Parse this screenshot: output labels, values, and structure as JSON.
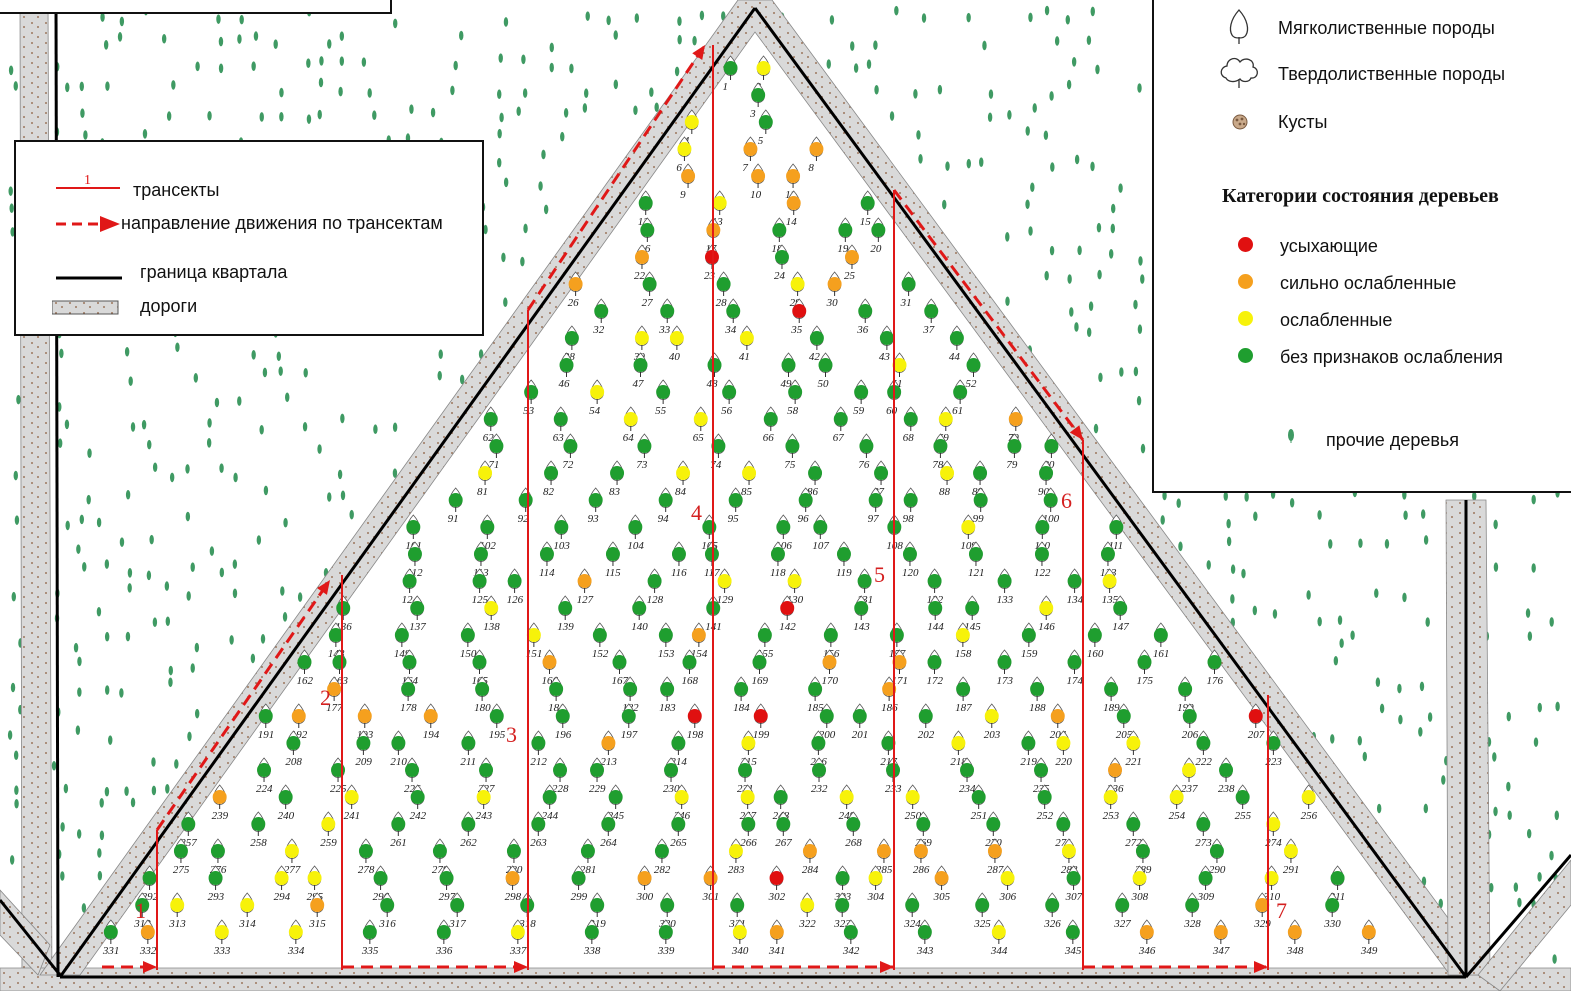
{
  "legend_main": {
    "items": [
      {
        "symbol": "transect-line",
        "symbol_label": "1",
        "label": "трансекты"
      },
      {
        "symbol": "dashed-arrow",
        "label": "направление движения по трансектам"
      },
      {
        "symbol": "black-line",
        "label": "граница квартала"
      },
      {
        "symbol": "road",
        "label": "дороги"
      }
    ]
  },
  "legend_species": {
    "items": [
      {
        "icon": "soft-leaved-tree-icon",
        "label": "Мягколиственные породы"
      },
      {
        "icon": "hard-leaved-tree-icon",
        "label": "Твердолиственные породы"
      },
      {
        "icon": "bush-icon",
        "label": "Кусты"
      }
    ]
  },
  "legend_condition": {
    "title": "Категории  состояния деревьев",
    "items": [
      {
        "key": "red",
        "color": "#e01010",
        "label": "усыхающие"
      },
      {
        "key": "orange",
        "color": "#f5a01e",
        "label": "сильно ослабленные"
      },
      {
        "key": "yellow",
        "color": "#f7f20a",
        "label": "ослабленные"
      },
      {
        "key": "green",
        "color": "#1f9e2f",
        "label": "без признаков ослабления"
      }
    ]
  },
  "legend_other": {
    "icon": "other-tree-icon",
    "label": "прочие деревья"
  },
  "colors": {
    "road": "#d8d8d8",
    "boundary": "#000000",
    "transect": "#e01818",
    "other_tree": "#3f9a63"
  },
  "transects": [
    "1",
    "2",
    "3",
    "4",
    "5",
    "6",
    "7"
  ],
  "trees": [
    {
      "id": "1",
      "c": "green"
    },
    {
      "id": "2",
      "c": "yellow"
    },
    {
      "id": "3",
      "c": "green"
    },
    {
      "id": "4",
      "c": "yellow"
    },
    {
      "id": "5",
      "c": "green"
    },
    {
      "id": "6",
      "c": "yellow"
    },
    {
      "id": "7",
      "c": "orange"
    },
    {
      "id": "8",
      "c": "orange"
    },
    {
      "id": "9",
      "c": "orange"
    },
    {
      "id": "10",
      "c": "orange"
    },
    {
      "id": "11",
      "c": "orange"
    },
    {
      "id": "12",
      "c": "green"
    },
    {
      "id": "13",
      "c": "yellow"
    },
    {
      "id": "14",
      "c": "orange"
    },
    {
      "id": "15",
      "c": "green"
    },
    {
      "id": "16",
      "c": "green"
    },
    {
      "id": "17",
      "c": "orange"
    },
    {
      "id": "18",
      "c": "green"
    },
    {
      "id": "19",
      "c": "green"
    },
    {
      "id": "20",
      "c": "green"
    },
    {
      "id": "22",
      "c": "orange"
    },
    {
      "id": "23",
      "c": "red"
    },
    {
      "id": "24",
      "c": "green"
    },
    {
      "id": "25",
      "c": "orange"
    },
    {
      "id": "26",
      "c": "orange"
    },
    {
      "id": "27",
      "c": "green"
    },
    {
      "id": "28",
      "c": "green"
    },
    {
      "id": "29",
      "c": "yellow"
    },
    {
      "id": "30",
      "c": "orange"
    },
    {
      "id": "31",
      "c": "green"
    },
    {
      "id": "32",
      "c": "green"
    },
    {
      "id": "33",
      "c": "green"
    },
    {
      "id": "34",
      "c": "green"
    },
    {
      "id": "35",
      "c": "red"
    },
    {
      "id": "36",
      "c": "green"
    },
    {
      "id": "37",
      "c": "green"
    },
    {
      "id": "38",
      "c": "green"
    },
    {
      "id": "39",
      "c": "yellow"
    },
    {
      "id": "40",
      "c": "yellow"
    },
    {
      "id": "41",
      "c": "yellow"
    },
    {
      "id": "42",
      "c": "green"
    },
    {
      "id": "43",
      "c": "green"
    },
    {
      "id": "44",
      "c": "green"
    },
    {
      "id": "46",
      "c": "green"
    },
    {
      "id": "47",
      "c": "green"
    },
    {
      "id": "48",
      "c": "green"
    },
    {
      "id": "49",
      "c": "green"
    },
    {
      "id": "50",
      "c": "green"
    },
    {
      "id": "51",
      "c": "yellow"
    },
    {
      "id": "52",
      "c": "green"
    },
    {
      "id": "53",
      "c": "green"
    },
    {
      "id": "54",
      "c": "yellow"
    },
    {
      "id": "55",
      "c": "green"
    },
    {
      "id": "56",
      "c": "green"
    },
    {
      "id": "58",
      "c": "green"
    },
    {
      "id": "59",
      "c": "green"
    },
    {
      "id": "60",
      "c": "green"
    },
    {
      "id": "61",
      "c": "green"
    },
    {
      "id": "62",
      "c": "green"
    },
    {
      "id": "63",
      "c": "green"
    },
    {
      "id": "64",
      "c": "yellow"
    },
    {
      "id": "65",
      "c": "yellow"
    },
    {
      "id": "66",
      "c": "green"
    },
    {
      "id": "67",
      "c": "green"
    },
    {
      "id": "68",
      "c": "green"
    },
    {
      "id": "69",
      "c": "yellow"
    },
    {
      "id": "70",
      "c": "orange"
    },
    {
      "id": "71",
      "c": "green"
    },
    {
      "id": "72",
      "c": "green"
    },
    {
      "id": "73",
      "c": "green"
    },
    {
      "id": "74",
      "c": "green"
    },
    {
      "id": "75",
      "c": "green"
    },
    {
      "id": "76",
      "c": "green"
    },
    {
      "id": "78",
      "c": "green"
    },
    {
      "id": "79",
      "c": "green"
    },
    {
      "id": "80",
      "c": "green"
    },
    {
      "id": "81",
      "c": "yellow"
    },
    {
      "id": "82",
      "c": "green"
    },
    {
      "id": "83",
      "c": "green"
    },
    {
      "id": "84",
      "c": "yellow"
    },
    {
      "id": "85",
      "c": "yellow"
    },
    {
      "id": "86",
      "c": "green"
    },
    {
      "id": "87",
      "c": "green"
    },
    {
      "id": "88",
      "c": "yellow"
    },
    {
      "id": "89",
      "c": "green"
    },
    {
      "id": "90",
      "c": "green"
    },
    {
      "id": "91",
      "c": "green"
    },
    {
      "id": "92",
      "c": "green"
    },
    {
      "id": "93",
      "c": "green"
    },
    {
      "id": "94",
      "c": "green"
    },
    {
      "id": "95",
      "c": "green"
    },
    {
      "id": "96",
      "c": "green"
    },
    {
      "id": "97",
      "c": "green"
    },
    {
      "id": "98",
      "c": "green"
    },
    {
      "id": "99",
      "c": "green"
    },
    {
      "id": "100",
      "c": "green"
    },
    {
      "id": "101",
      "c": "green"
    },
    {
      "id": "102",
      "c": "green"
    },
    {
      "id": "103",
      "c": "green"
    },
    {
      "id": "104",
      "c": "green"
    },
    {
      "id": "105",
      "c": "green"
    },
    {
      "id": "106",
      "c": "green"
    },
    {
      "id": "107",
      "c": "green"
    },
    {
      "id": "108",
      "c": "green"
    },
    {
      "id": "109",
      "c": "yellow"
    },
    {
      "id": "110",
      "c": "green"
    },
    {
      "id": "111",
      "c": "green"
    },
    {
      "id": "112",
      "c": "green"
    },
    {
      "id": "113",
      "c": "green"
    },
    {
      "id": "114",
      "c": "green"
    },
    {
      "id": "115",
      "c": "green"
    },
    {
      "id": "116",
      "c": "green"
    },
    {
      "id": "117",
      "c": "green"
    },
    {
      "id": "118",
      "c": "green"
    },
    {
      "id": "119",
      "c": "green"
    },
    {
      "id": "120",
      "c": "green"
    },
    {
      "id": "121",
      "c": "green"
    },
    {
      "id": "122",
      "c": "green"
    },
    {
      "id": "123",
      "c": "green"
    },
    {
      "id": "124",
      "c": "green"
    },
    {
      "id": "125",
      "c": "green"
    },
    {
      "id": "126",
      "c": "green"
    },
    {
      "id": "127",
      "c": "orange"
    },
    {
      "id": "128",
      "c": "green"
    },
    {
      "id": "129",
      "c": "yellow"
    },
    {
      "id": "130",
      "c": "yellow"
    },
    {
      "id": "131",
      "c": "green"
    },
    {
      "id": "132",
      "c": "green"
    },
    {
      "id": "133",
      "c": "green"
    },
    {
      "id": "134",
      "c": "green"
    },
    {
      "id": "135",
      "c": "yellow"
    },
    {
      "id": "136",
      "c": "green"
    },
    {
      "id": "137",
      "c": "green"
    },
    {
      "id": "138",
      "c": "yellow"
    },
    {
      "id": "139",
      "c": "green"
    },
    {
      "id": "140",
      "c": "green"
    },
    {
      "id": "141",
      "c": "green"
    },
    {
      "id": "142",
      "c": "red"
    },
    {
      "id": "143",
      "c": "green"
    },
    {
      "id": "144",
      "c": "green"
    },
    {
      "id": "145",
      "c": "green"
    },
    {
      "id": "146",
      "c": "yellow"
    },
    {
      "id": "147",
      "c": "green"
    },
    {
      "id": "148",
      "c": "green"
    },
    {
      "id": "149",
      "c": "green"
    },
    {
      "id": "150",
      "c": "green"
    },
    {
      "id": "151",
      "c": "yellow"
    },
    {
      "id": "152",
      "c": "green"
    },
    {
      "id": "153",
      "c": "green"
    },
    {
      "id": "154",
      "c": "orange"
    },
    {
      "id": "155",
      "c": "green"
    },
    {
      "id": "156",
      "c": "green"
    },
    {
      "id": "157",
      "c": "green"
    },
    {
      "id": "158",
      "c": "yellow"
    },
    {
      "id": "159",
      "c": "green"
    },
    {
      "id": "160",
      "c": "green"
    },
    {
      "id": "161",
      "c": "green"
    },
    {
      "id": "162",
      "c": "green"
    },
    {
      "id": "163",
      "c": "green"
    },
    {
      "id": "164",
      "c": "green"
    },
    {
      "id": "165",
      "c": "green"
    },
    {
      "id": "166",
      "c": "orange"
    },
    {
      "id": "167",
      "c": "green"
    },
    {
      "id": "168",
      "c": "green"
    },
    {
      "id": "169",
      "c": "green"
    },
    {
      "id": "170",
      "c": "orange"
    },
    {
      "id": "171",
      "c": "orange"
    },
    {
      "id": "172",
      "c": "green"
    },
    {
      "id": "173",
      "c": "green"
    },
    {
      "id": "174",
      "c": "green"
    },
    {
      "id": "175",
      "c": "green"
    },
    {
      "id": "176",
      "c": "green"
    },
    {
      "id": "177",
      "c": "orange"
    },
    {
      "id": "178",
      "c": "green"
    },
    {
      "id": "180",
      "c": "green"
    },
    {
      "id": "181",
      "c": "green"
    },
    {
      "id": "182",
      "c": "green"
    },
    {
      "id": "183",
      "c": "green"
    },
    {
      "id": "184",
      "c": "green"
    },
    {
      "id": "185",
      "c": "green"
    },
    {
      "id": "186",
      "c": "orange"
    },
    {
      "id": "187",
      "c": "green"
    },
    {
      "id": "188",
      "c": "green"
    },
    {
      "id": "189",
      "c": "green"
    },
    {
      "id": "190",
      "c": "green"
    },
    {
      "id": "191",
      "c": "green"
    },
    {
      "id": "192",
      "c": "orange"
    },
    {
      "id": "193",
      "c": "orange"
    },
    {
      "id": "194",
      "c": "orange"
    },
    {
      "id": "195",
      "c": "green"
    },
    {
      "id": "196",
      "c": "green"
    },
    {
      "id": "197",
      "c": "green"
    },
    {
      "id": "198",
      "c": "red"
    },
    {
      "id": "199",
      "c": "red"
    },
    {
      "id": "200",
      "c": "green"
    },
    {
      "id": "201",
      "c": "green"
    },
    {
      "id": "202",
      "c": "green"
    },
    {
      "id": "203",
      "c": "yellow"
    },
    {
      "id": "204",
      "c": "orange"
    },
    {
      "id": "205",
      "c": "green"
    },
    {
      "id": "206",
      "c": "green"
    },
    {
      "id": "207",
      "c": "red"
    },
    {
      "id": "208",
      "c": "green"
    },
    {
      "id": "209",
      "c": "green"
    },
    {
      "id": "210",
      "c": "green"
    },
    {
      "id": "211",
      "c": "green"
    },
    {
      "id": "212",
      "c": "green"
    },
    {
      "id": "213",
      "c": "orange"
    },
    {
      "id": "214",
      "c": "green"
    },
    {
      "id": "215",
      "c": "yellow"
    },
    {
      "id": "216",
      "c": "green"
    },
    {
      "id": "217",
      "c": "green"
    },
    {
      "id": "218",
      "c": "yellow"
    },
    {
      "id": "219",
      "c": "green"
    },
    {
      "id": "220",
      "c": "yellow"
    },
    {
      "id": "221",
      "c": "yellow"
    },
    {
      "id": "222",
      "c": "green"
    },
    {
      "id": "223",
      "c": "green"
    },
    {
      "id": "224",
      "c": "green"
    },
    {
      "id": "225",
      "c": "green"
    },
    {
      "id": "226",
      "c": "green"
    },
    {
      "id": "227",
      "c": "green"
    },
    {
      "id": "228",
      "c": "green"
    },
    {
      "id": "229",
      "c": "green"
    },
    {
      "id": "230",
      "c": "green"
    },
    {
      "id": "231",
      "c": "green"
    },
    {
      "id": "232",
      "c": "green"
    },
    {
      "id": "233",
      "c": "green"
    },
    {
      "id": "234",
      "c": "green"
    },
    {
      "id": "235",
      "c": "green"
    },
    {
      "id": "236",
      "c": "orange"
    },
    {
      "id": "237",
      "c": "yellow"
    },
    {
      "id": "238",
      "c": "green"
    },
    {
      "id": "239",
      "c": "orange"
    },
    {
      "id": "240",
      "c": "green"
    },
    {
      "id": "241",
      "c": "yellow"
    },
    {
      "id": "242",
      "c": "green"
    },
    {
      "id": "243",
      "c": "yellow"
    },
    {
      "id": "244",
      "c": "green"
    },
    {
      "id": "245",
      "c": "green"
    },
    {
      "id": "246",
      "c": "yellow"
    },
    {
      "id": "247",
      "c": "yellow"
    },
    {
      "id": "248",
      "c": "green"
    },
    {
      "id": "249",
      "c": "yellow"
    },
    {
      "id": "250",
      "c": "yellow"
    },
    {
      "id": "251",
      "c": "green"
    },
    {
      "id": "252",
      "c": "green"
    },
    {
      "id": "253",
      "c": "yellow"
    },
    {
      "id": "254",
      "c": "yellow"
    },
    {
      "id": "255",
      "c": "green"
    },
    {
      "id": "256",
      "c": "yellow"
    },
    {
      "id": "257",
      "c": "green"
    },
    {
      "id": "258",
      "c": "green"
    },
    {
      "id": "259",
      "c": "yellow"
    },
    {
      "id": "261",
      "c": "green"
    },
    {
      "id": "262",
      "c": "green"
    },
    {
      "id": "263",
      "c": "green"
    },
    {
      "id": "264",
      "c": "green"
    },
    {
      "id": "265",
      "c": "green"
    },
    {
      "id": "266",
      "c": "green"
    },
    {
      "id": "267",
      "c": "green"
    },
    {
      "id": "268",
      "c": "green"
    },
    {
      "id": "269",
      "c": "green"
    },
    {
      "id": "270",
      "c": "green"
    },
    {
      "id": "271",
      "c": "green"
    },
    {
      "id": "272",
      "c": "green"
    },
    {
      "id": "273",
      "c": "green"
    },
    {
      "id": "274",
      "c": "yellow"
    },
    {
      "id": "275",
      "c": "green"
    },
    {
      "id": "276",
      "c": "green"
    },
    {
      "id": "277",
      "c": "yellow"
    },
    {
      "id": "278",
      "c": "green"
    },
    {
      "id": "279",
      "c": "green"
    },
    {
      "id": "280",
      "c": "green"
    },
    {
      "id": "281",
      "c": "green"
    },
    {
      "id": "282",
      "c": "green"
    },
    {
      "id": "283",
      "c": "yellow"
    },
    {
      "id": "284",
      "c": "orange"
    },
    {
      "id": "285",
      "c": "orange"
    },
    {
      "id": "286",
      "c": "orange"
    },
    {
      "id": "287",
      "c": "orange"
    },
    {
      "id": "288",
      "c": "yellow"
    },
    {
      "id": "289",
      "c": "green"
    },
    {
      "id": "290",
      "c": "green"
    },
    {
      "id": "291",
      "c": "yellow"
    },
    {
      "id": "292",
      "c": "green"
    },
    {
      "id": "293",
      "c": "green"
    },
    {
      "id": "294",
      "c": "yellow"
    },
    {
      "id": "295",
      "c": "yellow"
    },
    {
      "id": "296",
      "c": "green"
    },
    {
      "id": "297",
      "c": "green"
    },
    {
      "id": "298",
      "c": "orange"
    },
    {
      "id": "299",
      "c": "green"
    },
    {
      "id": "300",
      "c": "orange"
    },
    {
      "id": "301",
      "c": "orange"
    },
    {
      "id": "302",
      "c": "red"
    },
    {
      "id": "303",
      "c": "green"
    },
    {
      "id": "304",
      "c": "yellow"
    },
    {
      "id": "305",
      "c": "orange"
    },
    {
      "id": "306",
      "c": "yellow"
    },
    {
      "id": "307",
      "c": "green"
    },
    {
      "id": "308",
      "c": "yellow"
    },
    {
      "id": "309",
      "c": "green"
    },
    {
      "id": "310",
      "c": "yellow"
    },
    {
      "id": "311",
      "c": "green"
    },
    {
      "id": "312",
      "c": "green"
    },
    {
      "id": "313",
      "c": "yellow"
    },
    {
      "id": "314",
      "c": "yellow"
    },
    {
      "id": "315",
      "c": "orange"
    },
    {
      "id": "316",
      "c": "green"
    },
    {
      "id": "317",
      "c": "green"
    },
    {
      "id": "318",
      "c": "green"
    },
    {
      "id": "319",
      "c": "green"
    },
    {
      "id": "320",
      "c": "green"
    },
    {
      "id": "321",
      "c": "green"
    },
    {
      "id": "322",
      "c": "yellow"
    },
    {
      "id": "323",
      "c": "green"
    },
    {
      "id": "324",
      "c": "green"
    },
    {
      "id": "325",
      "c": "green"
    },
    {
      "id": "326",
      "c": "green"
    },
    {
      "id": "327",
      "c": "green"
    },
    {
      "id": "328",
      "c": "green"
    },
    {
      "id": "329",
      "c": "orange"
    },
    {
      "id": "330",
      "c": "green"
    },
    {
      "id": "331",
      "c": "green"
    },
    {
      "id": "332",
      "c": "orange"
    },
    {
      "id": "333",
      "c": "yellow"
    },
    {
      "id": "334",
      "c": "yellow"
    },
    {
      "id": "335",
      "c": "green"
    },
    {
      "id": "336",
      "c": "green"
    },
    {
      "id": "337",
      "c": "yellow"
    },
    {
      "id": "338",
      "c": "green"
    },
    {
      "id": "339",
      "c": "green"
    },
    {
      "id": "340",
      "c": "yellow"
    },
    {
      "id": "341",
      "c": "orange"
    },
    {
      "id": "342",
      "c": "green"
    },
    {
      "id": "343",
      "c": "green"
    },
    {
      "id": "344",
      "c": "yellow"
    },
    {
      "id": "345",
      "c": "green"
    },
    {
      "id": "346",
      "c": "orange"
    },
    {
      "id": "347",
      "c": "orange"
    },
    {
      "id": "348",
      "c": "orange"
    },
    {
      "id": "349",
      "c": "orange"
    }
  ]
}
